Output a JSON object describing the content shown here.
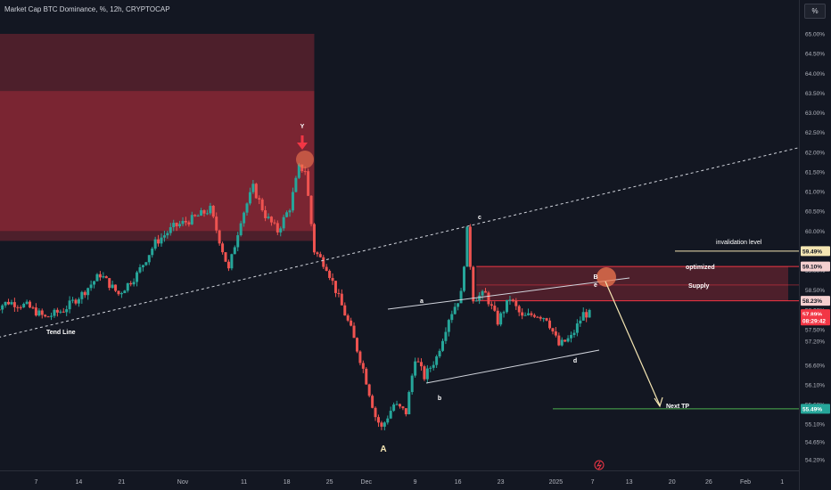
{
  "title": "Market Cap BTC Dominance, %, 12h, CRYPTOCAP",
  "unit_button": "%",
  "chart_data": {
    "type": "candlestick",
    "y_axis": {
      "unit": "%",
      "ticks": [
        "65.00%",
        "64.50%",
        "64.00%",
        "63.50%",
        "63.00%",
        "62.50%",
        "62.00%",
        "61.50%",
        "61.00%",
        "60.50%",
        "60.00%",
        "59.50%",
        "59.00%",
        "58.50%",
        "58.00%",
        "57.50%",
        "57.20%",
        "56.60%",
        "56.10%",
        "55.60%",
        "55.10%",
        "54.65%",
        "54.20%"
      ],
      "ticks_num": [
        65.0,
        64.5,
        64.0,
        63.5,
        63.0,
        62.5,
        62.0,
        61.5,
        61.0,
        60.5,
        60.0,
        59.5,
        59.0,
        58.5,
        58.0,
        57.5,
        57.2,
        56.6,
        56.1,
        55.6,
        55.1,
        54.65,
        54.2
      ],
      "ylim": [
        54.0,
        65.5
      ]
    },
    "x_axis": {
      "ticks": [
        "7",
        "14",
        "21",
        "Nov",
        "11",
        "18",
        "25",
        "Dec",
        "9",
        "16",
        "23",
        "2025",
        "7",
        "13",
        "20",
        "26",
        "Feb",
        "1"
      ],
      "tick_days": [
        -24,
        -17,
        -10,
        0,
        10,
        17,
        24,
        30,
        38,
        45,
        52,
        61,
        67,
        73,
        80,
        86,
        92,
        98
      ],
      "xlim": [
        -31,
        99
      ]
    },
    "price_labels": [
      {
        "text": "59.49%",
        "value": 59.49,
        "color": "#f5e6b3",
        "text_color": "#131722"
      },
      {
        "text": "59.10%",
        "value": 59.1,
        "color": "#f5d0d0",
        "text_color": "#131722"
      },
      {
        "text": "58.23%",
        "value": 58.23,
        "color": "#f5d0d0",
        "text_color": "#131722"
      },
      {
        "text": "57.89%",
        "value": 57.89,
        "color": "#f23645",
        "text_color": "#ffffff"
      },
      {
        "text": "08:29:42",
        "value": 57.73,
        "color": "#f23645",
        "text_color": "#ffffff"
      },
      {
        "text": "55.49%",
        "value": 55.49,
        "color": "#26a69a",
        "text_color": "#ffffff"
      }
    ],
    "annotations": {
      "tend_line": "Tend Line",
      "invalidation": "invalidation level",
      "optimized": "optimized",
      "supply": "Supply",
      "next_tp": "Next TP",
      "wave_Y": "Y",
      "wave_A": "A",
      "wave_a": "a",
      "wave_b": "b",
      "wave_c": "c",
      "wave_d": "d",
      "wave_B": "B",
      "wave_e": "e"
    },
    "zones": [
      {
        "name": "upper-supply-outer",
        "x_days": [
          -31,
          21.5
        ],
        "y": [
          59.75,
          65.0
        ]
      },
      {
        "name": "upper-supply-inner",
        "x_days": [
          -31,
          21.5
        ],
        "y": [
          60.0,
          63.55
        ]
      },
      {
        "name": "optimized-supply",
        "x_days": [
          48,
          99
        ],
        "y": [
          58.23,
          59.1
        ]
      }
    ],
    "trend_line": {
      "from": [
        -31,
        57.27
      ],
      "to": [
        99,
        62.05
      ]
    },
    "candles_keypoints": [
      [
        -31,
        58.0
      ],
      [
        -28,
        58.2
      ],
      [
        -25,
        58.1
      ],
      [
        -22,
        57.8
      ],
      [
        -19,
        58.0
      ],
      [
        -16,
        58.4
      ],
      [
        -13,
        58.9
      ],
      [
        -10,
        58.4
      ],
      [
        -7,
        58.9
      ],
      [
        -4,
        59.7
      ],
      [
        -1,
        60.1
      ],
      [
        2,
        60.3
      ],
      [
        5,
        60.55
      ],
      [
        8,
        59.0
      ],
      [
        10,
        60.3
      ],
      [
        12,
        61.1
      ],
      [
        14,
        60.4
      ],
      [
        16,
        60.0
      ],
      [
        18,
        60.6
      ],
      [
        19.5,
        61.6
      ],
      [
        20.5,
        61.55
      ],
      [
        22,
        59.5
      ],
      [
        24,
        59.1
      ],
      [
        26,
        58.3
      ],
      [
        28,
        57.5
      ],
      [
        30,
        56.5
      ],
      [
        32,
        55.3
      ],
      [
        33,
        55.0
      ],
      [
        35,
        55.6
      ],
      [
        37,
        55.4
      ],
      [
        38.5,
        56.8
      ],
      [
        40,
        56.3
      ],
      [
        42,
        56.8
      ],
      [
        44,
        57.8
      ],
      [
        46,
        58.4
      ],
      [
        47,
        60.0
      ],
      [
        48,
        58.3
      ],
      [
        50,
        58.4
      ],
      [
        52,
        57.7
      ],
      [
        54,
        58.3
      ],
      [
        56,
        57.8
      ],
      [
        58,
        57.9
      ],
      [
        60,
        57.8
      ],
      [
        62,
        57.1
      ],
      [
        64,
        57.3
      ],
      [
        66,
        57.9
      ],
      [
        67,
        57.89
      ]
    ]
  }
}
